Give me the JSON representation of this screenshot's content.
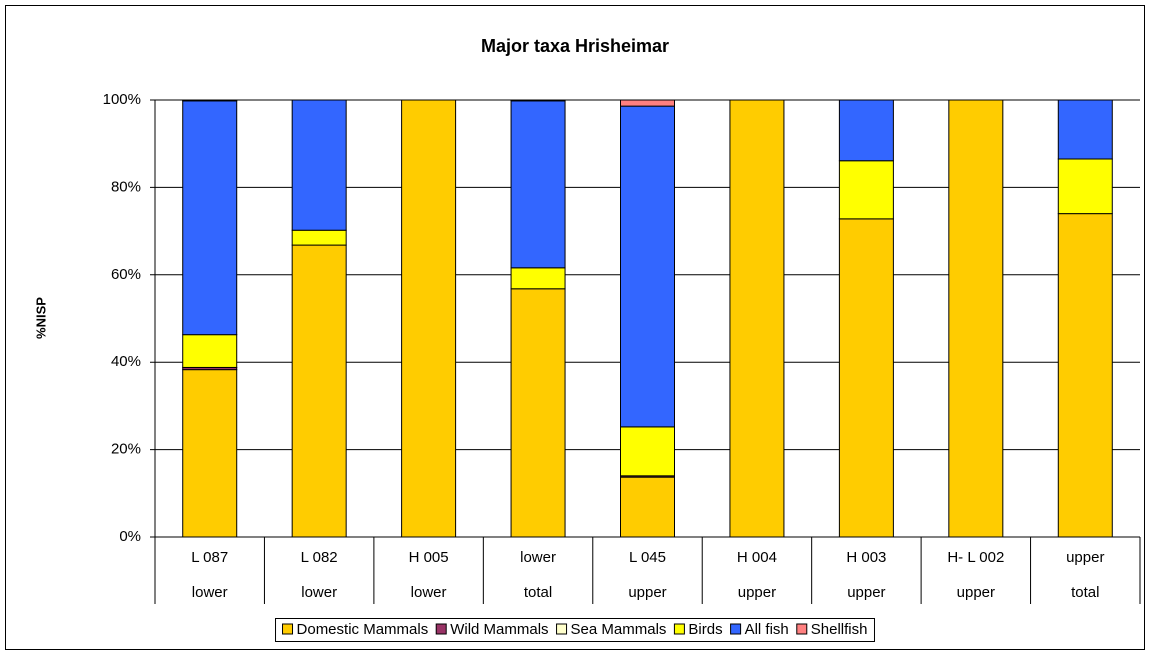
{
  "chart_data": {
    "type": "stacked_bar_100",
    "title": "Major taxa Hrisheimar",
    "y_label": "%NISP",
    "categories": [
      [
        "L 087",
        "lower"
      ],
      [
        "L 082",
        "lower"
      ],
      [
        "H 005",
        "lower"
      ],
      [
        "lower",
        "total"
      ],
      [
        "L 045",
        "upper"
      ],
      [
        "H 004",
        "upper"
      ],
      [
        "H 003",
        "upper"
      ],
      [
        "H- L 002",
        "upper"
      ],
      [
        "upper",
        "total"
      ]
    ],
    "series": [
      {
        "name": "Domestic Mammals",
        "color": "#FFCC00",
        "values": [
          38.3,
          66.8,
          100,
          56.8,
          13.7,
          100,
          72.8,
          100,
          74
        ]
      },
      {
        "name": "Wild Mammals",
        "color": "#993366",
        "values": [
          0.5,
          0,
          0,
          0,
          0.3,
          0,
          0,
          0,
          0
        ]
      },
      {
        "name": "Sea Mammals",
        "color": "#FFFFCC",
        "values": [
          0,
          0,
          0,
          0,
          0,
          0,
          0,
          0,
          0
        ]
      },
      {
        "name": "Birds",
        "color": "#FFFF00",
        "values": [
          7.5,
          3.4,
          0,
          4.8,
          11.2,
          0,
          13.3,
          0,
          12.5
        ]
      },
      {
        "name": "All fish",
        "color": "#3366FF",
        "values": [
          53.5,
          29.8,
          0,
          38.2,
          73.4,
          0,
          13.9,
          0,
          13.5
        ]
      },
      {
        "name": "Shellfish",
        "color": "#FF8080",
        "values": [
          0.2,
          0,
          0,
          0.2,
          1.4,
          0,
          0,
          0,
          0
        ]
      }
    ],
    "ylim": [
      0,
      100
    ],
    "yticks": [
      {
        "value": 0,
        "label": "0%"
      },
      {
        "value": 20,
        "label": "20%"
      },
      {
        "value": 40,
        "label": "40%"
      },
      {
        "value": 60,
        "label": "60%"
      },
      {
        "value": 80,
        "label": "80%"
      },
      {
        "value": 100,
        "label": "100%"
      }
    ],
    "grid": true,
    "legend": "bottom"
  }
}
